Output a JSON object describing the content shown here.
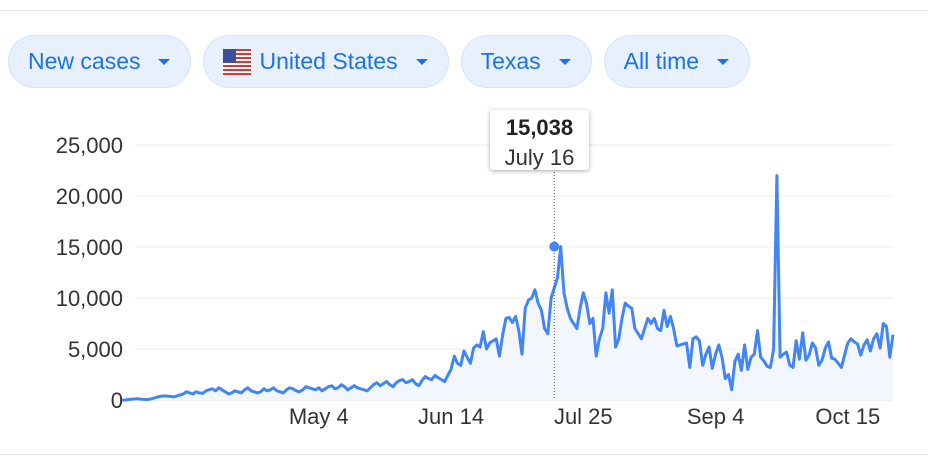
{
  "filters": {
    "metric": "New cases",
    "country": "United States",
    "region": "Texas",
    "range": "All time"
  },
  "colors": {
    "line": "#4285f4",
    "area": "#f3f6fd",
    "grid": "#ececec",
    "chip_bg": "#e8f0fe",
    "chip_text": "#1a73e8"
  },
  "tooltip": {
    "value": "15,038",
    "date": "July 16"
  },
  "chart_data": {
    "type": "area",
    "x_ticks": [
      "May 4",
      "Jun 14",
      "Jul 25",
      "Sep 4",
      "Oct 15"
    ],
    "y_ticks": [
      "0",
      "5,000",
      "10,000",
      "15,000",
      "20,000",
      "25,000"
    ],
    "ylim": [
      0,
      25000
    ],
    "grid": true,
    "start_date": "2020-03-04",
    "highlight": {
      "date": "2020-07-16",
      "value": 15038
    },
    "values": [
      0,
      0,
      50,
      80,
      100,
      120,
      80,
      60,
      50,
      100,
      200,
      300,
      350,
      400,
      380,
      350,
      300,
      400,
      500,
      600,
      800,
      700,
      600,
      800,
      700,
      650,
      900,
      1000,
      1100,
      900,
      1200,
      1000,
      800,
      600,
      700,
      900,
      800,
      700,
      1000,
      1200,
      900,
      800,
      700,
      800,
      1100,
      900,
      1000,
      1200,
      900,
      800,
      700,
      1000,
      1200,
      1100,
      900,
      800,
      1000,
      1300,
      1200,
      1100,
      1000,
      1200,
      900,
      1100,
      1300,
      1400,
      1100,
      1200,
      1500,
      1300,
      1000,
      1200,
      1400,
      1200,
      1100,
      1000,
      900,
      1200,
      1500,
      1700,
      1400,
      1600,
      1800,
      1500,
      1300,
      1700,
      1900,
      2000,
      1700,
      1800,
      2000,
      1600,
      1400,
      1900,
      2300,
      2100,
      2000,
      2400,
      2200,
      2000,
      1800,
      2400,
      3000,
      4300,
      3600,
      3400,
      4800,
      4200,
      3600,
      5100,
      5400,
      5200,
      6700,
      5000,
      5600,
      5800,
      6000,
      4300,
      6400,
      8000,
      8100,
      7600,
      8200,
      6800,
      4500,
      9000,
      9800,
      10000,
      10800,
      9500,
      8800,
      7000,
      6500,
      10000,
      11000,
      12000,
      15038,
      10500,
      9000,
      8000,
      7500,
      7000,
      9000,
      10500,
      9500,
      7500,
      8000,
      4300,
      6000,
      7000,
      10500,
      8500,
      10800,
      5200,
      6000,
      8000,
      9500,
      9200,
      9000,
      7000,
      6500,
      6000,
      7000,
      8000,
      7500,
      8000,
      7000,
      6800,
      8800,
      7200,
      8200,
      7000,
      5300,
      5400,
      5500,
      5600,
      3200,
      6000,
      6200,
      5800,
      3400,
      4500,
      5200,
      3100,
      4500,
      5400,
      4200,
      2100,
      2500,
      1000,
      3800,
      4500,
      2900,
      5400,
      3000,
      4200,
      4500,
      6800,
      4200,
      3800,
      3300,
      3200,
      5000,
      22000,
      4200,
      4500,
      4700,
      3400,
      3200,
      5800,
      4000,
      6600,
      3900,
      4400,
      5600,
      5100,
      3400,
      3900,
      5100,
      5700,
      4100,
      4000,
      3600,
      3200,
      4400,
      5600,
      6000,
      5700,
      5500,
      4400,
      5400,
      5900,
      4800,
      6000,
      6500,
      5100,
      7500,
      7200,
      4200,
      6400
    ]
  }
}
